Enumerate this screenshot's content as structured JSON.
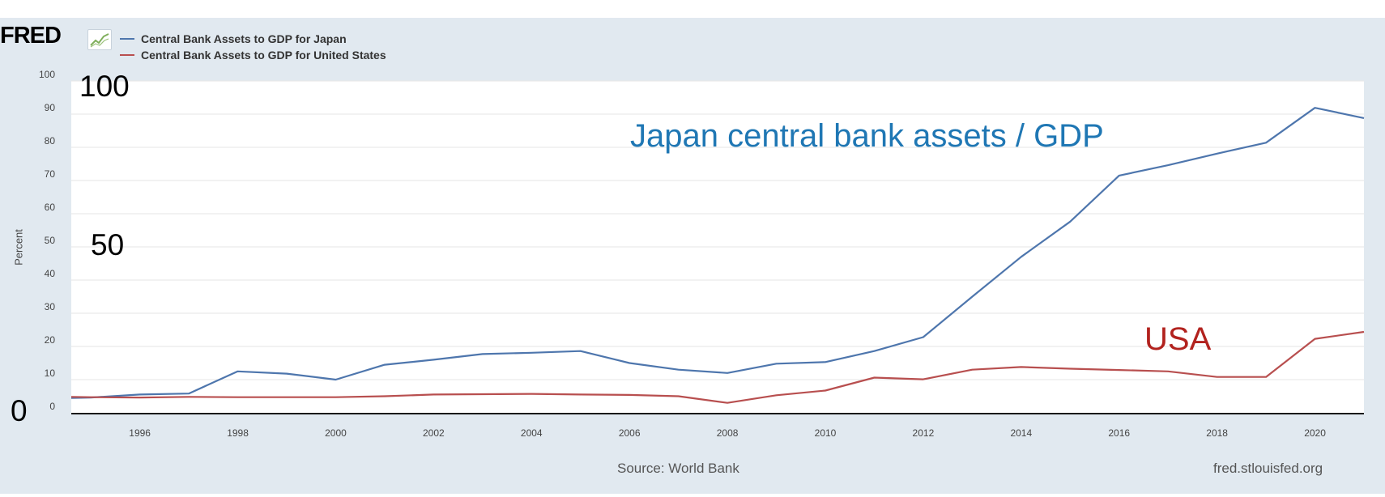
{
  "header": {
    "logo_text": "FRED",
    "logo_icon": "trend-line-icon"
  },
  "legend": [
    {
      "label": "Central Bank Assets to GDP for Japan",
      "color": "#4e76ad"
    },
    {
      "label": "Central Bank Assets to GDP for United States",
      "color": "#b84f4f"
    }
  ],
  "annotations": {
    "y100": "100",
    "y50": "50",
    "y0": "0",
    "japan_label": "Japan central bank assets / GDP",
    "usa_label": "USA",
    "japan_color": "#1f77b4",
    "usa_color": "#b2221e"
  },
  "footer": {
    "source": "Source: World Bank",
    "site": "fred.stlouisfed.org"
  },
  "chart_data": {
    "type": "line",
    "ylabel": "Percent",
    "ylim": [
      0,
      100
    ],
    "yticks": [
      0,
      10,
      20,
      30,
      40,
      50,
      60,
      70,
      80,
      90,
      100
    ],
    "xlim": [
      1994.6,
      2021
    ],
    "xticks": [
      1996,
      1998,
      2000,
      2002,
      2004,
      2006,
      2008,
      2010,
      2012,
      2014,
      2016,
      2018,
      2020
    ],
    "grid": true,
    "legend_position": "top-left",
    "x": [
      1994.6,
      1995,
      1996,
      1997,
      1998,
      1999,
      2000,
      2001,
      2002,
      2003,
      2004,
      2005,
      2006,
      2007,
      2008,
      2009,
      2010,
      2011,
      2012,
      2013,
      2014,
      2015,
      2016,
      2017,
      2018,
      2019,
      2020,
      2021
    ],
    "series": [
      {
        "name": "Central Bank Assets to GDP for Japan",
        "color": "#4e76ad",
        "values": [
          4.5,
          4.6,
          5.5,
          5.8,
          12.5,
          11.8,
          10.0,
          14.5,
          16.0,
          17.7,
          18.1,
          18.6,
          15.0,
          13.0,
          12.0,
          14.8,
          15.3,
          18.6,
          22.8,
          35.0,
          47.0,
          57.6,
          71.5,
          74.6,
          78.1,
          81.4,
          91.9,
          88.8
        ]
      },
      {
        "name": "Central Bank Assets to GDP for United States",
        "color": "#b84f4f",
        "values": [
          4.8,
          4.7,
          4.6,
          4.8,
          4.7,
          4.7,
          4.7,
          5.0,
          5.5,
          5.6,
          5.7,
          5.5,
          5.4,
          5.0,
          3.0,
          5.3,
          6.7,
          10.6,
          10.1,
          13.0,
          13.8,
          13.3,
          12.9,
          12.5,
          10.8,
          10.8,
          22.3,
          24.4
        ]
      }
    ]
  }
}
